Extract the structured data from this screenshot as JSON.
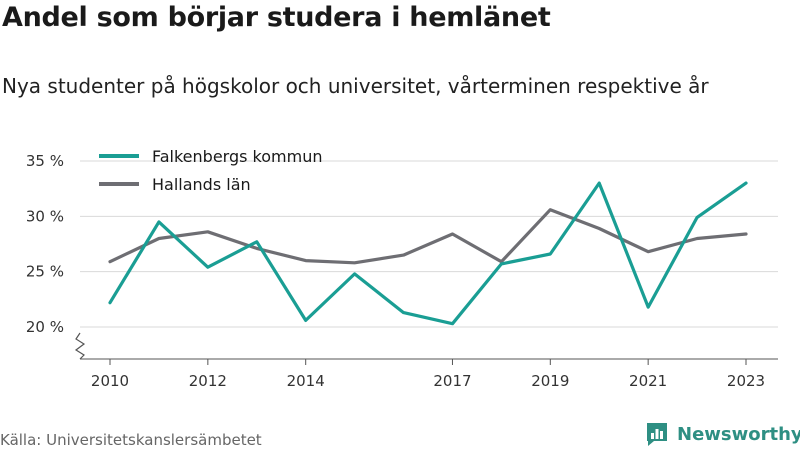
{
  "header": {
    "title": "Andel som börjar studera i hemlänet",
    "subtitle": "Nya studenter på högskolor och universitet, vårterminen respektive år"
  },
  "footer": {
    "source": "Källa: Universitetskanslersämbetet",
    "brand": "Newsworthy",
    "brand_icon": "newsworthy-logo-icon"
  },
  "colors": {
    "falkenberg": "#1a9e94",
    "halland": "#6e6e73",
    "grid": "#d9d9d9",
    "brand": "#2e8f83"
  },
  "chart_data": {
    "type": "line",
    "x": [
      2010,
      2011,
      2012,
      2013,
      2014,
      2015,
      2016,
      2017,
      2018,
      2019,
      2020,
      2021,
      2022,
      2023
    ],
    "x_tick_labels": [
      "2010",
      "2012",
      "2014",
      "2017",
      "2019",
      "2021",
      "2023"
    ],
    "y_ticks": [
      20,
      25,
      30,
      35
    ],
    "y_tick_labels": [
      "20 %",
      "25 %",
      "30 %",
      "35 %"
    ],
    "ylim": [
      20,
      35
    ],
    "y_axis_break": true,
    "grid": "horizontal",
    "legend_position": "top-left",
    "series": [
      {
        "name": "Falkenbergs kommun",
        "color": "#1a9e94",
        "values": [
          22.2,
          29.5,
          25.4,
          27.7,
          20.6,
          24.8,
          21.3,
          20.3,
          25.7,
          26.6,
          33.0,
          21.8,
          29.9,
          33.0
        ]
      },
      {
        "name": "Hallands län",
        "color": "#6e6e73",
        "values": [
          25.9,
          28.0,
          28.6,
          27.1,
          26.0,
          25.8,
          26.5,
          28.4,
          25.9,
          30.6,
          28.9,
          26.8,
          28.0,
          28.4
        ]
      }
    ]
  }
}
